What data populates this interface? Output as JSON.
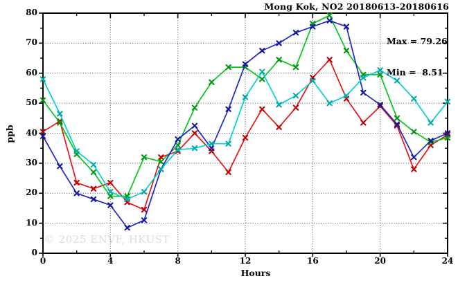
{
  "watermark": "© 2025 ENVF, HKUST",
  "chart_data": {
    "type": "line",
    "title": "Mong Kok, NO2 20180613-20180616",
    "xlabel": "Hours",
    "ylabel": "ppb",
    "annotations": [
      "Max = 79.26",
      "Min =  8.51"
    ],
    "stats": {
      "max": 79.26,
      "min": 8.51
    },
    "xlim": [
      0,
      24
    ],
    "ylim": [
      0,
      80
    ],
    "x_ticks": [
      0,
      4,
      8,
      12,
      16,
      20,
      24
    ],
    "y_ticks": [
      0,
      10,
      20,
      30,
      40,
      50,
      60,
      70,
      80
    ],
    "x_minor_step": 2,
    "y_minor_step": 5,
    "grid": "dotted-at-major-ticks",
    "legend_position": "none",
    "x": [
      0,
      1,
      2,
      3,
      4,
      5,
      6,
      7,
      8,
      9,
      10,
      11,
      12,
      13,
      14,
      15,
      16,
      17,
      18,
      19,
      20,
      21,
      22,
      23,
      24
    ],
    "series": [
      {
        "name": "red-line",
        "color": "#e81212",
        "marker_color": "#c00000",
        "marker": "x",
        "values": [
          40.5,
          44,
          23.5,
          21.5,
          23.5,
          17,
          14.5,
          32,
          34,
          40,
          34,
          27,
          38.5,
          48,
          42,
          48.5,
          58.5,
          64.5,
          51.5,
          43.5,
          49,
          42.5,
          28,
          36,
          39.5
        ]
      },
      {
        "name": "green-line",
        "color": "#00c818",
        "marker_color": "#009612",
        "marker": "x",
        "values": [
          51,
          43.5,
          33,
          27,
          19,
          19,
          32,
          30.5,
          36,
          48.5,
          57,
          62,
          62,
          58,
          64.5,
          62,
          76.5,
          79.26,
          67.5,
          59.5,
          59.5,
          45,
          40.5,
          37,
          38.5
        ]
      },
      {
        "name": "blue-line",
        "color": "#2024cc",
        "marker_color": "#121699",
        "marker": "x",
        "values": [
          39,
          29,
          20,
          18,
          16,
          8.51,
          11,
          28,
          38,
          42.5,
          35,
          48,
          63,
          67.5,
          70,
          73.5,
          75.5,
          77.5,
          75.5,
          53.5,
          49.5,
          43,
          32,
          37.5,
          40
        ]
      },
      {
        "name": "cyan-line",
        "color": "#00d2d2",
        "marker_color": "#00a8a8",
        "marker": "x",
        "values": [
          58,
          46.5,
          34,
          29.5,
          20.5,
          18,
          20.5,
          28,
          34.5,
          35,
          36.5,
          36.5,
          52,
          60.5,
          49.5,
          52.5,
          57.5,
          50,
          52.5,
          58.5,
          61,
          57.5,
          51.5,
          43.5,
          50.5
        ]
      }
    ]
  }
}
